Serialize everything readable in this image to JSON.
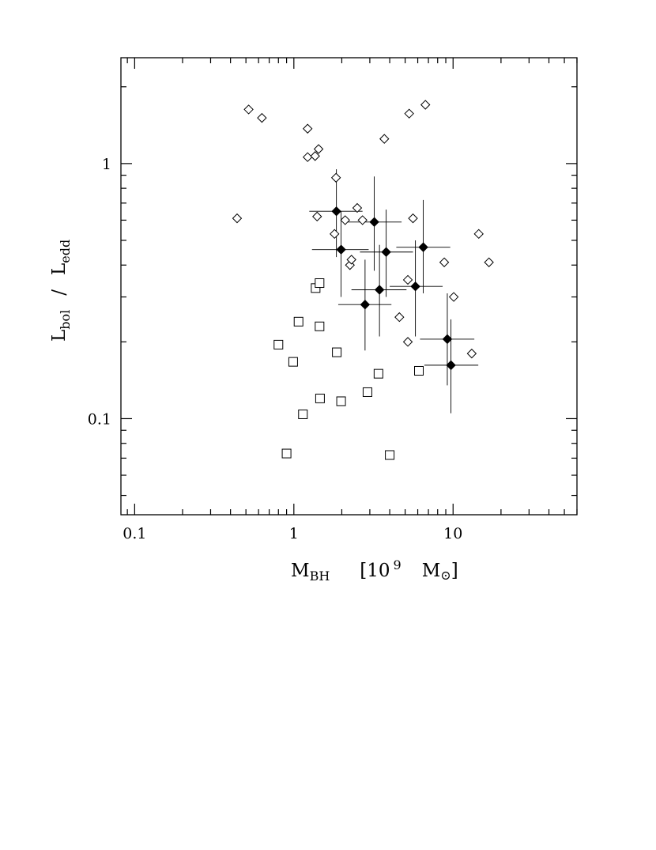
{
  "chart_data": {
    "type": "scatter",
    "title": "",
    "x_scale": "log",
    "y_scale": "log",
    "xlim": [
      0.082,
      60
    ],
    "ylim": [
      0.042,
      2.6
    ],
    "grid": false,
    "x_tick_labels": [
      {
        "value": 0.1,
        "label": "0.1"
      },
      {
        "value": 1,
        "label": "1"
      },
      {
        "value": 10,
        "label": "10"
      }
    ],
    "y_tick_labels": [
      {
        "value": 0.1,
        "label": "0.1"
      },
      {
        "value": 1,
        "label": "1"
      }
    ],
    "xlabel": {
      "main": "M",
      "sub": "BH",
      "rest": "[10",
      "sup": "9",
      "unit": "M",
      "unit_symbol": "⊙",
      "close": "]"
    },
    "ylabel": {
      "num": "L",
      "num_sub": "bol",
      "slash": "/",
      "den": "L",
      "den_sub": "edd"
    },
    "series": [
      {
        "marker": "open-diamond",
        "points": [
          {
            "x": 0.44,
            "y": 0.61
          },
          {
            "x": 0.52,
            "y": 1.63
          },
          {
            "x": 0.63,
            "y": 1.51
          },
          {
            "x": 1.22,
            "y": 1.37
          },
          {
            "x": 1.22,
            "y": 1.06
          },
          {
            "x": 1.36,
            "y": 1.07
          },
          {
            "x": 1.43,
            "y": 1.14
          },
          {
            "x": 1.4,
            "y": 0.62
          },
          {
            "x": 1.84,
            "y": 0.88
          },
          {
            "x": 1.8,
            "y": 0.53
          },
          {
            "x": 2.1,
            "y": 0.6
          },
          {
            "x": 2.25,
            "y": 0.4
          },
          {
            "x": 2.3,
            "y": 0.42
          },
          {
            "x": 2.5,
            "y": 0.67
          },
          {
            "x": 2.7,
            "y": 0.6
          },
          {
            "x": 3.7,
            "y": 1.25
          },
          {
            "x": 4.6,
            "y": 0.25
          },
          {
            "x": 5.2,
            "y": 0.35
          },
          {
            "x": 5.2,
            "y": 0.2
          },
          {
            "x": 5.3,
            "y": 1.57
          },
          {
            "x": 5.6,
            "y": 0.61
          },
          {
            "x": 6.7,
            "y": 1.7
          },
          {
            "x": 8.8,
            "y": 0.41
          },
          {
            "x": 10.1,
            "y": 0.3
          },
          {
            "x": 13.1,
            "y": 0.18
          },
          {
            "x": 14.5,
            "y": 0.53
          },
          {
            "x": 16.8,
            "y": 0.41
          }
        ]
      },
      {
        "marker": "open-square",
        "points": [
          {
            "x": 0.8,
            "y": 0.195
          },
          {
            "x": 0.9,
            "y": 0.073
          },
          {
            "x": 0.99,
            "y": 0.167
          },
          {
            "x": 1.07,
            "y": 0.24
          },
          {
            "x": 1.14,
            "y": 0.104
          },
          {
            "x": 1.37,
            "y": 0.325
          },
          {
            "x": 1.45,
            "y": 0.34
          },
          {
            "x": 1.45,
            "y": 0.23
          },
          {
            "x": 1.46,
            "y": 0.12
          },
          {
            "x": 1.86,
            "y": 0.182
          },
          {
            "x": 1.98,
            "y": 0.117
          },
          {
            "x": 2.9,
            "y": 0.127
          },
          {
            "x": 3.4,
            "y": 0.15
          },
          {
            "x": 4.0,
            "y": 0.072
          },
          {
            "x": 6.1,
            "y": 0.154
          }
        ]
      },
      {
        "marker": "filled-diamond",
        "points": [
          {
            "x": 1.85,
            "y": 0.65,
            "xerr": [
              1.25,
              2.7
            ],
            "yerr": [
              0.43,
              0.95
            ]
          },
          {
            "x": 1.98,
            "y": 0.46,
            "xerr": [
              1.3,
              2.95
            ],
            "yerr": [
              0.3,
              0.65
            ]
          },
          {
            "x": 2.8,
            "y": 0.28,
            "xerr": [
              1.9,
              4.1
            ],
            "yerr": [
              0.185,
              0.42
            ]
          },
          {
            "x": 3.2,
            "y": 0.59,
            "xerr": [
              2.15,
              4.75
            ],
            "yerr": [
              0.38,
              0.89
            ]
          },
          {
            "x": 3.45,
            "y": 0.32,
            "xerr": [
              2.3,
              5.1
            ],
            "yerr": [
              0.21,
              0.48
            ]
          },
          {
            "x": 3.8,
            "y": 0.45,
            "xerr": [
              2.6,
              5.6
            ],
            "yerr": [
              0.3,
              0.66
            ]
          },
          {
            "x": 5.8,
            "y": 0.33,
            "xerr": [
              4.0,
              8.6
            ],
            "yerr": [
              0.21,
              0.5
            ]
          },
          {
            "x": 6.5,
            "y": 0.47,
            "xerr": [
              4.4,
              9.6
            ],
            "yerr": [
              0.31,
              0.72
            ]
          },
          {
            "x": 9.2,
            "y": 0.205,
            "xerr": [
              6.2,
              13.6
            ],
            "yerr": [
              0.135,
              0.31
            ]
          },
          {
            "x": 9.7,
            "y": 0.162,
            "xerr": [
              6.6,
              14.4
            ],
            "yerr": [
              0.105,
              0.245
            ]
          }
        ]
      }
    ]
  }
}
